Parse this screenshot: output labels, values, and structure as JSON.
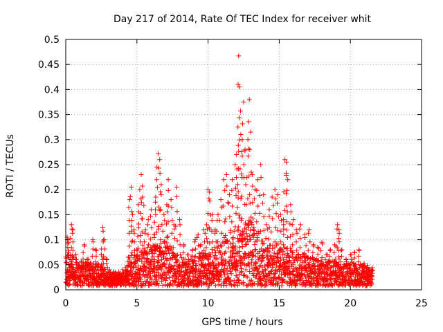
{
  "chart_data": {
    "type": "scatter",
    "title": "Day 217 of 2014, Rate Of TEC Index for receiver whit",
    "xlabel": "GPS time / hours",
    "ylabel": "ROTI / TECUs",
    "xlim": [
      0,
      25
    ],
    "ylim": [
      0,
      0.5
    ],
    "x_ticks": [
      0,
      5,
      10,
      15,
      20,
      25
    ],
    "x_tick_labels": [
      "0",
      "5",
      "10",
      "15",
      "20",
      "25"
    ],
    "y_ticks": [
      0,
      0.05,
      0.1,
      0.15,
      0.2,
      0.25,
      0.3,
      0.35,
      0.4,
      0.45,
      0.5
    ],
    "y_tick_labels": [
      "0",
      "0.05",
      "0.1",
      "0.15",
      "0.2",
      "0.25",
      "0.3",
      "0.35",
      "0.4",
      "0.45",
      "0.5"
    ],
    "grid": true,
    "marker": "+",
    "color": "#ff0000",
    "series": [
      {
        "name": "ROTI",
        "points": [
          [
            0.1,
            0.105
          ],
          [
            0.2,
            0.095
          ],
          [
            0.3,
            0.06
          ],
          [
            0.4,
            0.13
          ],
          [
            0.5,
            0.12
          ],
          [
            0.7,
            0.07
          ],
          [
            0.9,
            0.045
          ],
          [
            1.1,
            0.055
          ],
          [
            1.3,
            0.09
          ],
          [
            1.5,
            0.06
          ],
          [
            1.7,
            0.04
          ],
          [
            1.9,
            0.1
          ],
          [
            2.1,
            0.08
          ],
          [
            2.3,
            0.05
          ],
          [
            2.5,
            0.07
          ],
          [
            2.6,
            0.125
          ],
          [
            2.7,
            0.1
          ],
          [
            2.9,
            0.06
          ],
          [
            3.1,
            0.035
          ],
          [
            3.3,
            0.03
          ],
          [
            3.5,
            0.025
          ],
          [
            3.8,
            0.03
          ],
          [
            4.0,
            0.035
          ],
          [
            4.2,
            0.04
          ],
          [
            4.4,
            0.065
          ],
          [
            4.5,
            0.18
          ],
          [
            4.6,
            0.205
          ],
          [
            4.7,
            0.15
          ],
          [
            4.8,
            0.12
          ],
          [
            5.0,
            0.08
          ],
          [
            5.1,
            0.17
          ],
          [
            5.2,
            0.2
          ],
          [
            5.3,
            0.23
          ],
          [
            5.4,
            0.185
          ],
          [
            5.6,
            0.12
          ],
          [
            5.8,
            0.14
          ],
          [
            6.0,
            0.16
          ],
          [
            6.2,
            0.11
          ],
          [
            6.3,
            0.175
          ],
          [
            6.4,
            0.245
          ],
          [
            6.5,
            0.272
          ],
          [
            6.6,
            0.26
          ],
          [
            6.7,
            0.21
          ],
          [
            6.9,
            0.15
          ],
          [
            7.1,
            0.17
          ],
          [
            7.2,
            0.22
          ],
          [
            7.4,
            0.18
          ],
          [
            7.6,
            0.13
          ],
          [
            7.8,
            0.205
          ],
          [
            8.0,
            0.14
          ],
          [
            8.3,
            0.09
          ],
          [
            8.6,
            0.07
          ],
          [
            8.9,
            0.08
          ],
          [
            9.1,
            0.1
          ],
          [
            9.3,
            0.11
          ],
          [
            9.5,
            0.09
          ],
          [
            9.7,
            0.12
          ],
          [
            9.9,
            0.13
          ],
          [
            10.0,
            0.2
          ],
          [
            10.1,
            0.195
          ],
          [
            10.3,
            0.15
          ],
          [
            10.5,
            0.12
          ],
          [
            10.7,
            0.15
          ],
          [
            10.9,
            0.18
          ],
          [
            11.1,
            0.22
          ],
          [
            11.3,
            0.23
          ],
          [
            11.5,
            0.19
          ],
          [
            11.7,
            0.22
          ],
          [
            11.9,
            0.25
          ],
          [
            12.0,
            0.27
          ],
          [
            12.1,
            0.325
          ],
          [
            12.15,
            0.467
          ],
          [
            12.2,
            0.405
          ],
          [
            12.3,
            0.31
          ],
          [
            12.4,
            0.3
          ],
          [
            12.5,
            0.375
          ],
          [
            12.6,
            0.28
          ],
          [
            12.8,
            0.3
          ],
          [
            12.9,
            0.38
          ],
          [
            13.0,
            0.315
          ],
          [
            13.1,
            0.23
          ],
          [
            13.3,
            0.2
          ],
          [
            13.5,
            0.22
          ],
          [
            13.7,
            0.25
          ],
          [
            13.9,
            0.19
          ],
          [
            14.1,
            0.13
          ],
          [
            14.3,
            0.16
          ],
          [
            14.5,
            0.185
          ],
          [
            14.7,
            0.2
          ],
          [
            14.9,
            0.19
          ],
          [
            15.1,
            0.15
          ],
          [
            15.3,
            0.14
          ],
          [
            15.4,
            0.26
          ],
          [
            15.5,
            0.255
          ],
          [
            15.6,
            0.22
          ],
          [
            15.8,
            0.17
          ],
          [
            16.0,
            0.14
          ],
          [
            16.2,
            0.12
          ],
          [
            16.5,
            0.13
          ],
          [
            16.8,
            0.11
          ],
          [
            17.1,
            0.12
          ],
          [
            17.4,
            0.09
          ],
          [
            17.7,
            0.085
          ],
          [
            18.0,
            0.095
          ],
          [
            18.3,
            0.07
          ],
          [
            18.6,
            0.08
          ],
          [
            18.9,
            0.09
          ],
          [
            19.1,
            0.13
          ],
          [
            19.2,
            0.12
          ],
          [
            19.4,
            0.08
          ],
          [
            19.7,
            0.06
          ],
          [
            20.0,
            0.07
          ],
          [
            20.3,
            0.075
          ],
          [
            20.6,
            0.08
          ],
          [
            20.9,
            0.05
          ],
          [
            21.2,
            0.045
          ],
          [
            21.5,
            0.04
          ]
        ]
      }
    ],
    "envelope": {
      "description": "dense band of ROTI samples, upper envelope per hour",
      "x": [
        0,
        1,
        2,
        3,
        4,
        5,
        6,
        7,
        8,
        9,
        10,
        11,
        12,
        13,
        14,
        15,
        16,
        17,
        18,
        19,
        20,
        21,
        21.5
      ],
      "upper": [
        0.07,
        0.05,
        0.045,
        0.03,
        0.025,
        0.07,
        0.08,
        0.09,
        0.06,
        0.06,
        0.07,
        0.09,
        0.12,
        0.13,
        0.09,
        0.08,
        0.07,
        0.06,
        0.05,
        0.05,
        0.05,
        0.04,
        0.03
      ]
    }
  }
}
